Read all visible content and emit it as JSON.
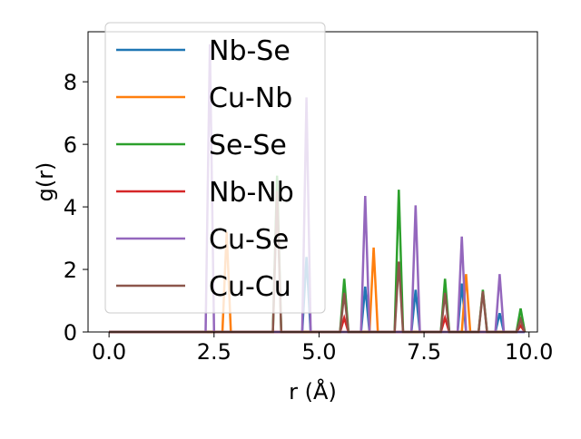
{
  "chart_data": {
    "type": "line",
    "title": "",
    "xlabel": "r (Å)",
    "ylabel": "g(r)",
    "xlim": [
      -0.5,
      10.2
    ],
    "ylim": [
      0,
      9.6
    ],
    "xticks": [
      0.0,
      2.5,
      5.0,
      7.5,
      10.0
    ],
    "xtick_labels": [
      "0.0",
      "2.5",
      "5.0",
      "7.5",
      "10.0"
    ],
    "yticks": [
      0,
      2,
      4,
      6,
      8
    ],
    "ytick_labels": [
      "0",
      "2",
      "4",
      "6",
      "8"
    ],
    "legend_position": "upper-left",
    "grid": false,
    "series": [
      {
        "name": "Nb-Se",
        "color": "#1f77b4",
        "peaks": [
          [
            4.7,
            2.4
          ],
          [
            6.1,
            1.45
          ],
          [
            7.3,
            1.35
          ],
          [
            8.4,
            1.55
          ],
          [
            9.3,
            0.6
          ]
        ]
      },
      {
        "name": "Cu-Nb",
        "color": "#ff7f0e",
        "peaks": [
          [
            2.8,
            3.2
          ],
          [
            6.3,
            2.7
          ],
          [
            8.5,
            1.85
          ],
          [
            9.8,
            0.4
          ]
        ]
      },
      {
        "name": "Se-Se",
        "color": "#2ca02c",
        "peaks": [
          [
            4.0,
            5.0
          ],
          [
            5.6,
            1.7
          ],
          [
            6.9,
            4.55
          ],
          [
            8.0,
            1.7
          ],
          [
            8.9,
            1.35
          ],
          [
            9.8,
            0.75
          ]
        ]
      },
      {
        "name": "Nb-Nb",
        "color": "#d62728",
        "peaks": [
          [
            5.6,
            0.45
          ],
          [
            8.0,
            0.45
          ],
          [
            9.8,
            0.2
          ]
        ]
      },
      {
        "name": "Cu-Se",
        "color": "#9467bd",
        "peaks": [
          [
            2.4,
            9.2
          ],
          [
            4.7,
            7.5
          ],
          [
            6.1,
            4.35
          ],
          [
            7.3,
            4.05
          ],
          [
            8.4,
            3.05
          ],
          [
            9.3,
            1.85
          ]
        ]
      },
      {
        "name": "Cu-Cu",
        "color": "#8c564b",
        "peaks": [
          [
            4.0,
            4.5
          ],
          [
            5.6,
            1.25
          ],
          [
            6.9,
            2.25
          ],
          [
            8.0,
            1.25
          ],
          [
            8.9,
            1.3
          ],
          [
            9.8,
            0.4
          ]
        ]
      }
    ]
  }
}
